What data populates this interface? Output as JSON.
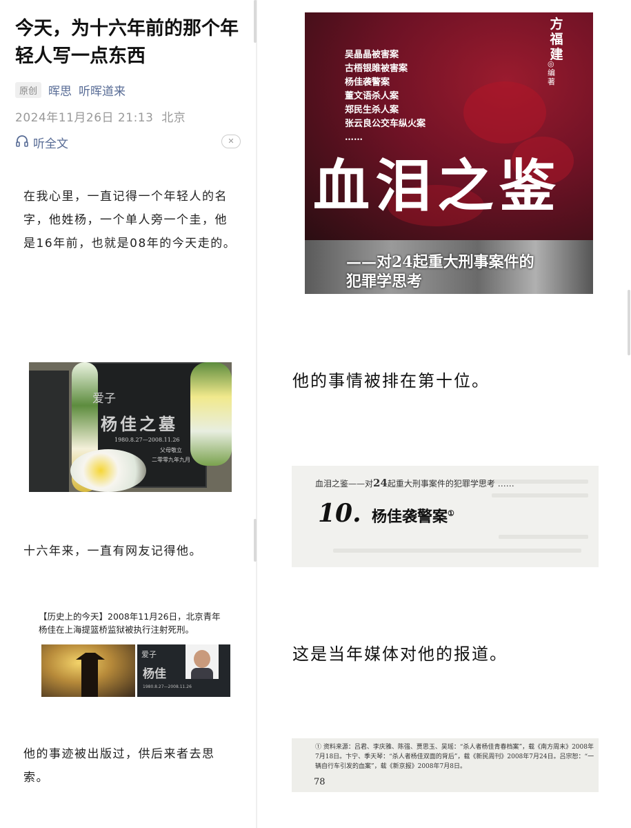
{
  "article": {
    "title": "今天，为十六年前的那个年轻人写一点东西",
    "original_tag": "原创",
    "author": "晖思",
    "account": "听晖道来",
    "date": "2024年11月26日 21:13",
    "location": "北京",
    "listen_label": "听全文",
    "close_glyph": "✕"
  },
  "paragraphs": {
    "p1": "在我心里，一直记得一个年轻人的名字，他姓杨，一个单人旁一个圭，他是16年前，也就是08年的今天走的。",
    "p2": "十六年来，一直有网友记得他。",
    "p3": "他的事迹被出版过，供后来者去思索。",
    "r1": "他的事情被排在第十位。",
    "r2": "这是当年媒体对他的报道。"
  },
  "tomb": {
    "label": "爱子",
    "name": "杨佳之墓",
    "dates": "1980.8.27—2008.11.26",
    "line2": "父母敬立",
    "line3": "二零零九年九月"
  },
  "news": {
    "text": "【历史上的今天】2008年11月26日，北京青年杨佳在上海提篮桥监狱被执行注射死刑。",
    "inner_label": "爱子",
    "inner_name": "杨佳",
    "inner_dates": "1980.8.27—2008.11.26"
  },
  "book_cover": {
    "cases": [
      "吴晶晶被害案",
      "古梧银雎被害案",
      "杨佳袭警案",
      "董文语杀人案",
      "郑民生杀人案",
      "张云良公交车纵火案",
      "……"
    ],
    "author": "方福建",
    "editor": "◎编著",
    "title": "血泪之鉴",
    "subtitle_1": "——对24起重大刑事案件的",
    "subtitle_2": "犯罪学思考"
  },
  "book_page": {
    "header_prefix": "血泪之鉴——对",
    "header_num": "24",
    "header_suffix": "起重大刑事案件的犯罪学思考 ……",
    "number": "10.",
    "case_title": "杨佳袭警案",
    "footnote_mark": "①"
  },
  "footnote": {
    "text": "① 资料来源：吕君、李庆雅、陈强、贾思玉、吴瑶：“杀人者杨佳青春档案”，载《南方周末》2008年7月18日。卞宁、季天琴：“杀人者杨佳双面的背后”，载《新民周刊》2008年7月24日。吕宗恕：“一辆自行车引发的血案”，载《新京报》2008年7月8日。",
    "page_number": "78"
  },
  "colors": {
    "link": "#576b95",
    "muted": "#999999",
    "cover_red": "#8e1a2c"
  }
}
